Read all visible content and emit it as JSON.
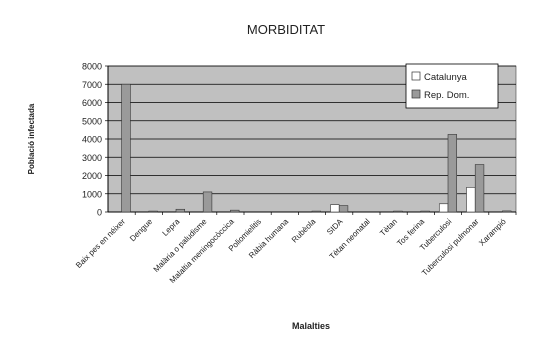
{
  "chart_data": {
    "type": "bar",
    "title": "MORBIDITAT",
    "xlabel": "Malalties",
    "ylabel": "Població infectada",
    "ylim": [
      0,
      8000
    ],
    "yticks": [
      0,
      1000,
      2000,
      3000,
      4000,
      5000,
      6000,
      7000,
      8000
    ],
    "grid": true,
    "legend": "top-right",
    "categories": [
      "Baix pes en néixer",
      "Dengue",
      "Lepra",
      "Malària o paludisme",
      "Malaltia meningocòccica",
      "Poliomielitis",
      "Ràbia humana",
      "Rubèola",
      "SIDA",
      "Tètan neonatal",
      "Tètan",
      "Tos ferina",
      "Tuberculosi",
      "Tuberculosi pulmonar",
      "Xarampió"
    ],
    "series": [
      {
        "name": "Catalunya",
        "color": "#ffffff",
        "values": [
          0,
          0,
          0,
          0,
          0,
          0,
          0,
          0,
          400,
          0,
          0,
          0,
          450,
          1350,
          0
        ]
      },
      {
        "name": "Rep. Dom.",
        "color": "#9a9a9a",
        "values": [
          7000,
          50,
          150,
          1100,
          100,
          0,
          0,
          50,
          350,
          0,
          50,
          50,
          4250,
          2600,
          60
        ]
      }
    ],
    "background": "#c0c0c0"
  }
}
